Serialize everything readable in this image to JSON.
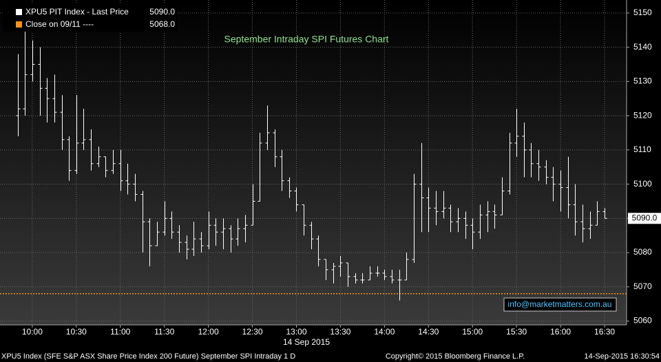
{
  "chart_data": {
    "type": "ohlc",
    "title": "September Intraday SPI Futures Chart",
    "x_axis_label": "14 Sep 2015",
    "annotation": "info@marketmatters.com.au",
    "footer": {
      "left": "XPU5 Index (SFE S&P ASX Share Price Index 200 Future) September SPI Intraday 1 D",
      "center": "Copyright© 2015 Bloomberg Finance L.P.",
      "right": "14-Sep-2015 16:30:54"
    },
    "x": [
      590,
      595,
      600,
      605,
      610,
      615,
      620,
      625,
      630,
      635,
      640,
      645,
      650,
      655,
      660,
      665,
      670,
      675,
      680,
      685,
      690,
      695,
      700,
      705,
      710,
      715,
      720,
      725,
      730,
      735,
      740,
      745,
      750,
      755,
      760,
      765,
      770,
      775,
      780,
      785,
      790,
      795,
      800,
      805,
      810,
      815,
      820,
      825,
      830,
      835,
      840,
      845,
      850,
      855,
      860,
      865,
      870,
      875,
      880,
      885,
      890,
      895,
      900,
      905,
      910,
      915,
      920,
      925,
      930,
      935,
      940,
      945,
      950,
      955,
      960,
      965,
      970,
      975,
      980,
      985,
      990
    ],
    "series": [
      {
        "name": "XPU5 PIT Index - Last Price",
        "color": "#ffffff",
        "open": [
          5120,
          5122,
          5132,
          5135,
          5128,
          5125,
          5121,
          5113,
          5104,
          5112,
          5113,
          5106,
          5108,
          5104,
          5106,
          5101,
          5100,
          5097,
          5089,
          5082,
          5086,
          5090,
          5086,
          5083,
          5081,
          5084,
          5082,
          5088,
          5086,
          5087,
          5084,
          5087,
          5088,
          5095,
          5112,
          5115,
          5108,
          5101,
          5098,
          5094,
          5088,
          5084,
          5078,
          5075,
          5076,
          5077,
          5073,
          5072,
          5072,
          5074,
          5074,
          5073,
          5072,
          5072,
          5078,
          5100,
          5096,
          5093,
          5092,
          5093,
          5089,
          5090,
          5088,
          5086,
          5091,
          5092,
          5091,
          5098,
          5112,
          5114,
          5110,
          5106,
          5105,
          5102,
          5100,
          5099,
          5094,
          5089,
          5087,
          5088,
          5092
        ],
        "high": [
          5138,
          5145,
          5142,
          5140,
          5131,
          5132,
          5126,
          5114,
          5126,
          5122,
          5116,
          5111,
          5108,
          5110,
          5110,
          5106,
          5103,
          5098,
          5090,
          5089,
          5095,
          5092,
          5088,
          5085,
          5089,
          5086,
          5092,
          5090,
          5090,
          5088,
          5090,
          5091,
          5100,
          5115,
          5123,
          5116,
          5110,
          5102,
          5099,
          5094,
          5089,
          5085,
          5078,
          5077,
          5079,
          5077,
          5074,
          5074,
          5076,
          5076,
          5075,
          5075,
          5075,
          5080,
          5103,
          5112,
          5099,
          5098,
          5098,
          5094,
          5093,
          5092,
          5090,
          5094,
          5095,
          5094,
          5102,
          5115,
          5122,
          5118,
          5112,
          5110,
          5107,
          5105,
          5104,
          5108,
          5100,
          5094,
          5092,
          5095,
          5093
        ],
        "low": [
          5114,
          5120,
          5130,
          5120,
          5118,
          5118,
          5110,
          5101,
          5103,
          5110,
          5104,
          5105,
          5102,
          5103,
          5098,
          5097,
          5095,
          5080,
          5076,
          5082,
          5085,
          5084,
          5080,
          5078,
          5079,
          5080,
          5081,
          5082,
          5081,
          5080,
          5082,
          5083,
          5088,
          5095,
          5110,
          5105,
          5098,
          5096,
          5092,
          5085,
          5081,
          5076,
          5072,
          5071,
          5073,
          5070,
          5071,
          5071,
          5072,
          5073,
          5072,
          5071,
          5066,
          5072,
          5077,
          5086,
          5086,
          5088,
          5090,
          5086,
          5086,
          5084,
          5081,
          5084,
          5086,
          5087,
          5091,
          5097,
          5108,
          5102,
          5102,
          5101,
          5100,
          5095,
          5092,
          5090,
          5085,
          5083,
          5084,
          5088,
          5090
        ],
        "close": [
          5122,
          5132,
          5135,
          5128,
          5125,
          5121,
          5113,
          5104,
          5112,
          5113,
          5106,
          5108,
          5104,
          5106,
          5101,
          5100,
          5097,
          5089,
          5082,
          5086,
          5090,
          5086,
          5083,
          5081,
          5084,
          5082,
          5088,
          5086,
          5087,
          5084,
          5087,
          5088,
          5095,
          5112,
          5115,
          5108,
          5101,
          5098,
          5094,
          5088,
          5084,
          5078,
          5075,
          5076,
          5077,
          5073,
          5072,
          5072,
          5074,
          5074,
          5073,
          5072,
          5072,
          5078,
          5100,
          5096,
          5093,
          5092,
          5093,
          5089,
          5090,
          5088,
          5086,
          5091,
          5092,
          5091,
          5098,
          5112,
          5114,
          5110,
          5106,
          5105,
          5102,
          5100,
          5099,
          5094,
          5089,
          5087,
          5088,
          5092,
          5090
        ]
      }
    ],
    "last_price": {
      "value": 5090,
      "label": "5090.0"
    },
    "reference_lines": [
      {
        "name": "Close on 09/11 ----",
        "value": 5068,
        "label": "5068.0",
        "color": "#f7931e"
      }
    ],
    "xlim": [
      578,
      1005
    ],
    "ylim": [
      5058.9,
      5153.8
    ],
    "xticks": [
      {
        "value": 600,
        "label": "10:00"
      },
      {
        "value": 630,
        "label": "10:30"
      },
      {
        "value": 660,
        "label": "11:00"
      },
      {
        "value": 690,
        "label": "11:30"
      },
      {
        "value": 720,
        "label": "12:00"
      },
      {
        "value": 750,
        "label": "12:30"
      },
      {
        "value": 780,
        "label": "13:00"
      },
      {
        "value": 810,
        "label": "13:30"
      },
      {
        "value": 840,
        "label": "14:00"
      },
      {
        "value": 870,
        "label": "14:30"
      },
      {
        "value": 900,
        "label": "15:00"
      },
      {
        "value": 930,
        "label": "15:30"
      },
      {
        "value": 960,
        "label": "16:00"
      },
      {
        "value": 990,
        "label": "16:30"
      }
    ],
    "yticks": [
      5060,
      5070,
      5080,
      5090,
      5100,
      5110,
      5120,
      5130,
      5140,
      5150
    ],
    "grid": true
  }
}
